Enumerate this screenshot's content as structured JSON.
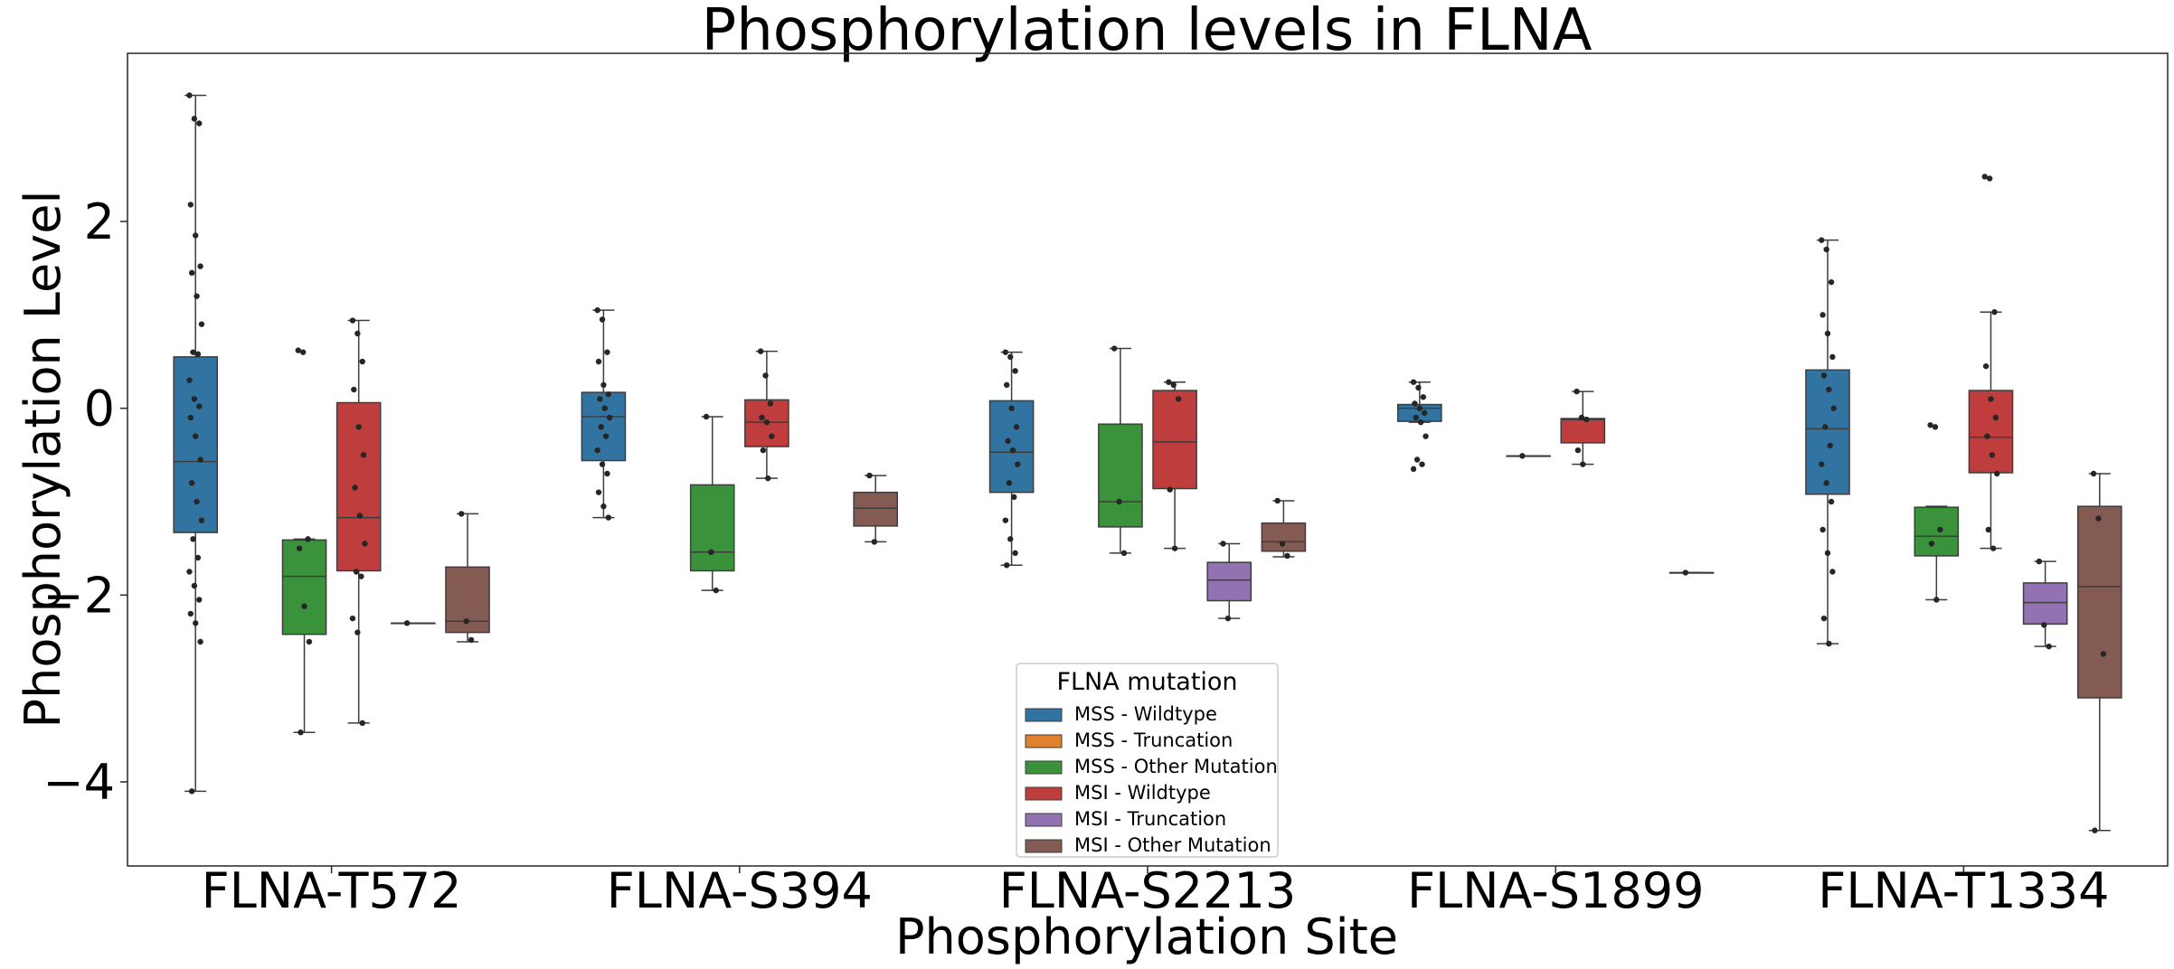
{
  "chart_data": {
    "type": "box",
    "title": "Phosphorylation levels in FLNA",
    "xlabel": "Phosphorylation Site",
    "ylabel": "Phosphorylation Level",
    "ylim": [
      -4.9,
      3.8
    ],
    "yticks": [
      -4,
      -2,
      0,
      2
    ],
    "ytick_labels": [
      "−4",
      "−2",
      "0",
      "2"
    ],
    "grid": false,
    "categories": [
      "FLNA-T572",
      "FLNA-S394",
      "FLNA-S2213",
      "FLNA-S1899",
      "FLNA-T1334"
    ],
    "legend": {
      "title": "FLNA mutation",
      "placement": "bottom-center",
      "entries": [
        "MSS - Wildtype",
        "MSS - Truncation",
        "MSS - Other Mutation",
        "MSI - Wildtype",
        "MSI - Truncation",
        "MSI - Other Mutation"
      ]
    },
    "series": [
      {
        "name": "MSS - Wildtype",
        "color": "#3274a1",
        "boxes": [
          {
            "category": "FLNA-T572",
            "whisker_low": -4.1,
            "q1": -1.33,
            "median": -0.57,
            "q3": 0.55,
            "whisker_high": 3.35,
            "points": [
              3.35,
              3.1,
              3.05,
              2.18,
              1.85,
              1.52,
              1.45,
              1.2,
              0.9,
              0.6,
              0.58,
              0.3,
              0.1,
              0.02,
              -0.1,
              -0.3,
              -0.55,
              -0.8,
              -1.0,
              -1.2,
              -1.4,
              -1.6,
              -1.75,
              -1.9,
              -2.05,
              -2.2,
              -2.3,
              -2.5,
              -4.1
            ]
          },
          {
            "category": "FLNA-S394",
            "whisker_low": -1.17,
            "q1": -0.56,
            "median": -0.09,
            "q3": 0.17,
            "whisker_high": 1.05,
            "points": [
              1.05,
              0.95,
              0.6,
              0.5,
              0.25,
              0.15,
              0.1,
              0.0,
              -0.1,
              -0.2,
              -0.3,
              -0.45,
              -0.6,
              -0.7,
              -0.9,
              -1.05,
              -1.17
            ]
          },
          {
            "category": "FLNA-S2213",
            "whisker_low": -1.68,
            "q1": -0.9,
            "median": -0.47,
            "q3": 0.08,
            "whisker_high": 0.6,
            "points": [
              0.6,
              0.55,
              0.4,
              0.25,
              0.0,
              -0.2,
              -0.35,
              -0.45,
              -0.6,
              -0.8,
              -0.95,
              -1.2,
              -1.4,
              -1.55,
              -1.68
            ]
          },
          {
            "category": "FLNA-S1899",
            "whisker_low": -0.15,
            "q1": -0.14,
            "median": 0.0,
            "q3": 0.04,
            "whisker_high": 0.28,
            "points": [
              0.28,
              0.22,
              0.12,
              0.05,
              0.0,
              -0.05,
              -0.1,
              -0.15,
              -0.3,
              -0.55,
              -0.6,
              -0.65
            ]
          },
          {
            "category": "FLNA-T1334",
            "whisker_low": -2.52,
            "q1": -0.92,
            "median": -0.22,
            "q3": 0.41,
            "whisker_high": 1.8,
            "points": [
              1.8,
              1.7,
              1.35,
              1.0,
              0.8,
              0.55,
              0.35,
              0.2,
              0.0,
              -0.2,
              -0.4,
              -0.6,
              -0.8,
              -1.0,
              -1.3,
              -1.55,
              -1.75,
              -2.25,
              -2.52
            ]
          }
        ]
      },
      {
        "name": "MSS - Truncation",
        "color": "#e1812c",
        "boxes": []
      },
      {
        "name": "MSS - Other Mutation",
        "color": "#3a923a",
        "boxes": [
          {
            "category": "FLNA-T572",
            "whisker_low": -3.47,
            "q1": -2.42,
            "median": -1.8,
            "q3": -1.41,
            "whisker_high": -1.4,
            "points": [
              0.62,
              0.6,
              -1.4,
              -1.5,
              -2.12,
              -2.5,
              -3.47
            ]
          },
          {
            "category": "FLNA-S394",
            "whisker_low": -1.95,
            "q1": -1.74,
            "median": -1.54,
            "q3": -0.82,
            "whisker_high": -0.09,
            "points": [
              -0.09,
              -1.54,
              -1.95
            ]
          },
          {
            "category": "FLNA-S2213",
            "whisker_low": -1.55,
            "q1": -1.27,
            "median": -1.0,
            "q3": -0.17,
            "whisker_high": 0.64,
            "points": [
              0.64,
              -1.0,
              -1.55
            ]
          },
          {
            "category": "FLNA-T1334",
            "whisker_low": -2.05,
            "q1": -1.58,
            "median": -1.37,
            "q3": -1.06,
            "whisker_high": -1.05,
            "points": [
              -0.18,
              -0.2,
              -1.3,
              -1.45,
              -2.05
            ]
          }
        ]
      },
      {
        "name": "MSI - Wildtype",
        "color": "#c03d3e",
        "boxes": [
          {
            "category": "FLNA-T572",
            "whisker_low": -3.37,
            "q1": -1.74,
            "median": -1.17,
            "q3": 0.06,
            "whisker_high": 0.94,
            "points": [
              0.94,
              0.8,
              0.5,
              0.2,
              -0.2,
              -0.5,
              -0.85,
              -1.15,
              -1.45,
              -1.75,
              -1.8,
              -2.25,
              -2.4,
              -3.37
            ]
          },
          {
            "category": "FLNA-S394",
            "whisker_low": -0.75,
            "q1": -0.41,
            "median": -0.15,
            "q3": 0.09,
            "whisker_high": 0.61,
            "points": [
              0.61,
              0.35,
              0.05,
              -0.1,
              -0.15,
              -0.3,
              -0.45,
              -0.75
            ]
          },
          {
            "category": "FLNA-S2213",
            "whisker_low": -1.5,
            "q1": -0.86,
            "median": -0.36,
            "q3": 0.19,
            "whisker_high": 0.28,
            "points": [
              0.28,
              0.25,
              0.1,
              -0.87,
              -1.5
            ]
          },
          {
            "category": "FLNA-S1899",
            "whisker_low": -0.6,
            "q1": -0.37,
            "median": -0.12,
            "q3": -0.11,
            "whisker_high": 0.18,
            "points": [
              0.18,
              -0.1,
              -0.12,
              -0.45,
              -0.6
            ]
          },
          {
            "category": "FLNA-T1334",
            "whisker_low": -1.5,
            "q1": -0.69,
            "median": -0.31,
            "q3": 0.19,
            "whisker_high": 1.03,
            "points": [
              2.48,
              2.46,
              1.03,
              0.45,
              0.1,
              -0.1,
              -0.3,
              -0.5,
              -0.7,
              -1.3,
              -1.5
            ]
          }
        ]
      },
      {
        "name": "MSI - Truncation",
        "color": "#9372b2",
        "boxes": [
          {
            "category": "FLNA-S2213",
            "whisker_low": -2.25,
            "q1": -2.06,
            "median": -1.84,
            "q3": -1.65,
            "whisker_high": -1.45,
            "points": [
              -1.45,
              -2.25
            ]
          },
          {
            "category": "FLNA-T1334",
            "whisker_low": -2.55,
            "q1": -2.31,
            "median": -2.08,
            "q3": -1.87,
            "whisker_high": -1.64,
            "points": [
              -1.64,
              -2.32,
              -2.55
            ]
          }
        ]
      },
      {
        "name": "MSI - Other Mutation",
        "color": "#845b53",
        "boxes": [
          {
            "category": "FLNA-T572",
            "whisker_low": -2.5,
            "q1": -2.4,
            "median": -2.28,
            "q3": -1.7,
            "whisker_high": -1.13,
            "points": [
              -1.13,
              -2.28,
              -2.48
            ]
          },
          {
            "category": "FLNA-S394",
            "whisker_low": -1.43,
            "q1": -1.26,
            "median": -1.07,
            "q3": -0.9,
            "whisker_high": -0.72,
            "points": [
              -0.72,
              -1.43
            ]
          },
          {
            "category": "FLNA-S2213",
            "whisker_low": -1.59,
            "q1": -1.53,
            "median": -1.43,
            "q3": -1.23,
            "whisker_high": -0.99,
            "points": [
              -0.99,
              -1.45,
              -1.58
            ]
          },
          {
            "category": "FLNA-S1899",
            "whisker_low": -1.76,
            "q1": -1.76,
            "median": -1.76,
            "q3": -1.76,
            "whisker_high": -1.76,
            "points": [
              -1.76
            ]
          },
          {
            "category": "FLNA-T1334",
            "whisker_low": -4.52,
            "q1": -3.1,
            "median": -1.91,
            "q3": -1.05,
            "whisker_high": -0.7,
            "points": [
              -0.7,
              -1.18,
              -2.63,
              -4.52
            ]
          }
        ]
      }
    ],
    "extra_boxes": [
      {
        "category": "FLNA-T572",
        "series_slot": 4,
        "whisker_low": -2.3,
        "q1": -2.3,
        "median": -2.3,
        "q3": -2.3,
        "whisker_high": -2.3,
        "points": [
          -2.3
        ]
      },
      {
        "category": "FLNA-S1899",
        "series_slot": 2,
        "whisker_low": -0.51,
        "q1": -0.51,
        "median": -0.51,
        "q3": -0.51,
        "whisker_high": -0.51,
        "points": [
          -0.51
        ]
      }
    ]
  }
}
